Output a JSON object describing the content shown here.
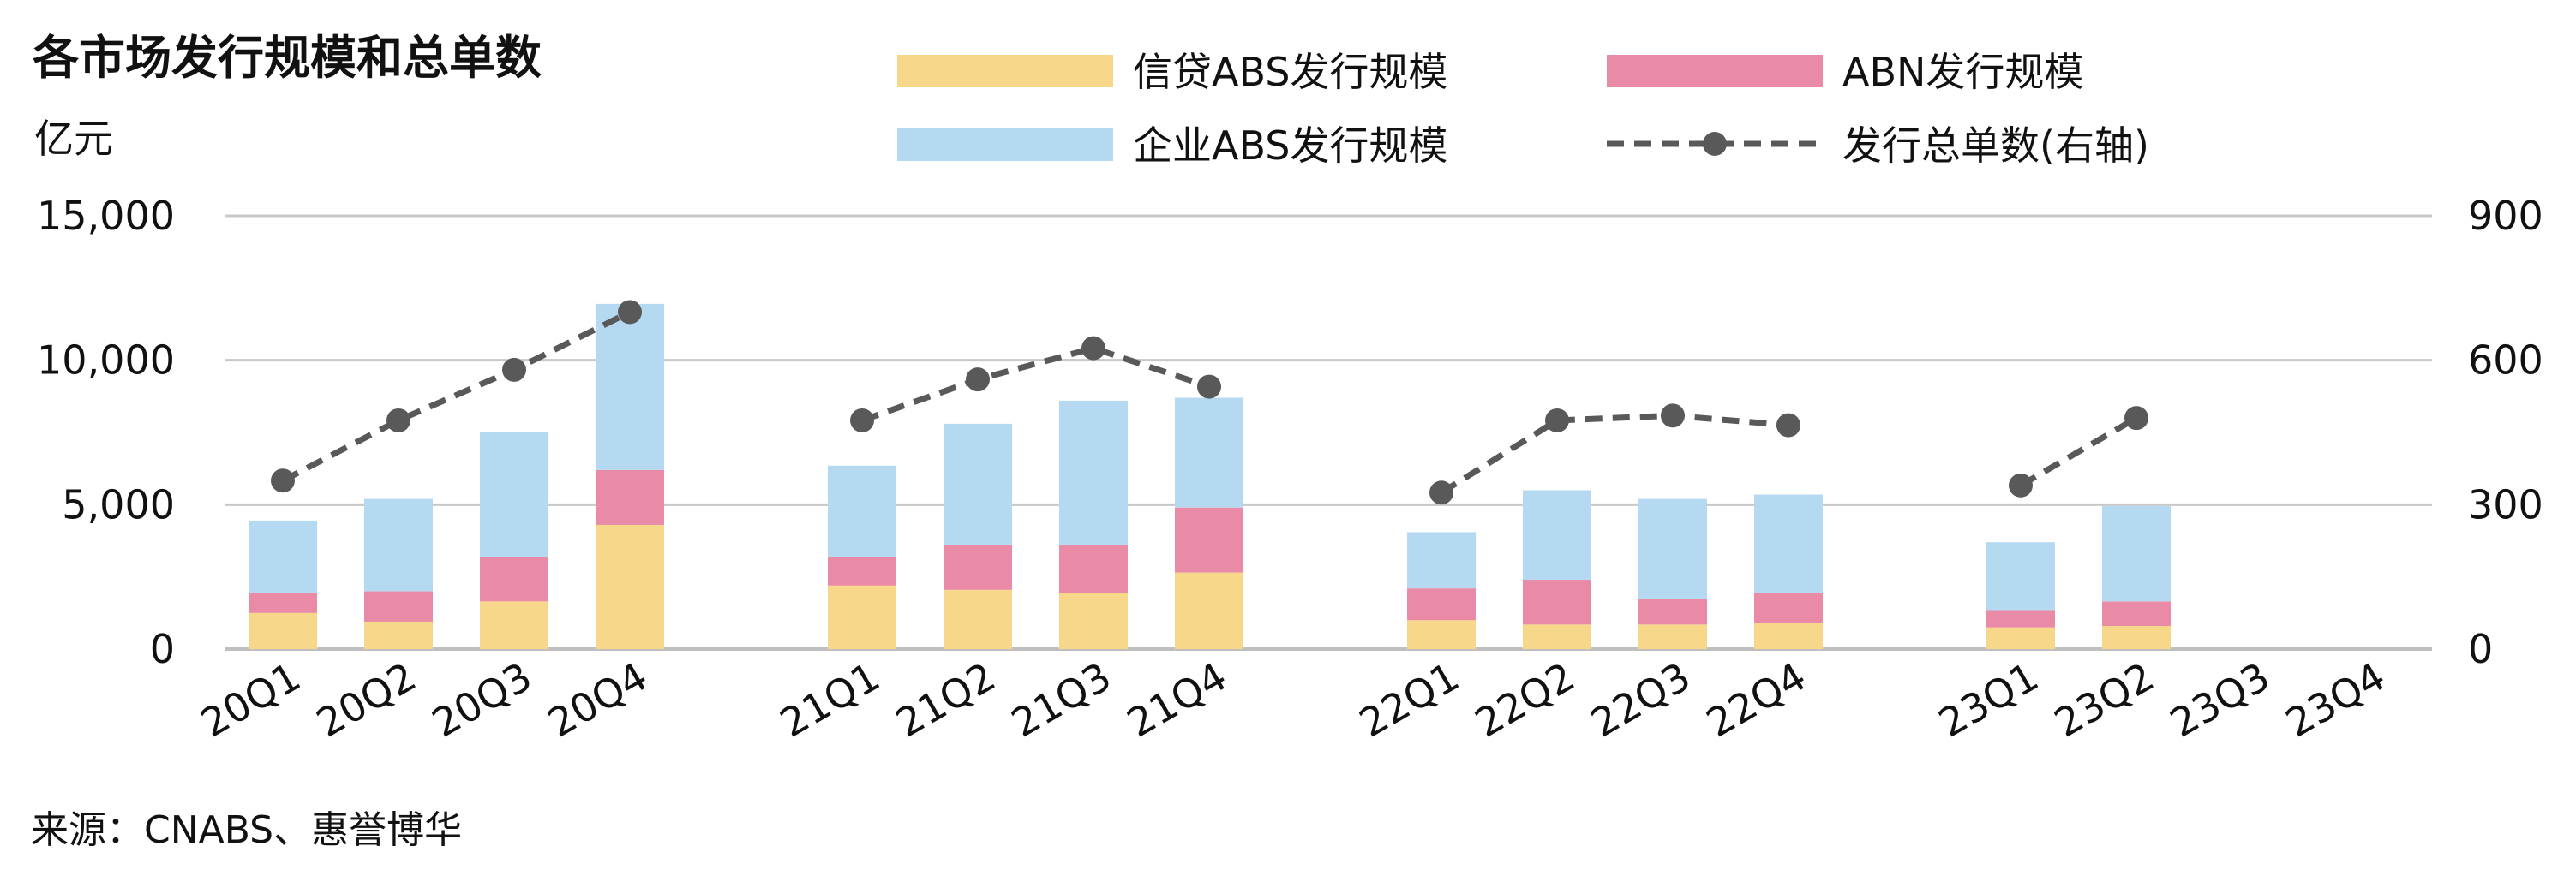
{
  "title": "各市场发行规模和总单数",
  "source": "来源：CNABS、惠誉博华",
  "colors": {
    "xindai": "#F7D88A",
    "abn": "#E98AA7",
    "qiye": "#B6D9F2",
    "line": "#595959",
    "grid": "#C8C8C8"
  },
  "chart_data": {
    "type": "bar",
    "stacked": true,
    "categories": [
      "20Q1",
      "20Q2",
      "20Q3",
      "20Q4",
      "21Q1",
      "21Q2",
      "21Q3",
      "21Q4",
      "22Q1",
      "22Q2",
      "22Q3",
      "22Q4",
      "23Q1",
      "23Q2",
      "23Q3",
      "23Q4"
    ],
    "series": [
      {
        "name": "信贷ABS发行规模",
        "values": [
          1250,
          950,
          1650,
          4300,
          2200,
          2050,
          1950,
          2650,
          1000,
          850,
          850,
          900,
          750,
          800,
          null,
          null
        ]
      },
      {
        "name": "ABN发行规模",
        "values": [
          700,
          1050,
          1550,
          1900,
          1000,
          1550,
          1650,
          2250,
          1100,
          1550,
          900,
          1050,
          600,
          850,
          null,
          null
        ]
      },
      {
        "name": "企业ABS发行规模",
        "values": [
          2500,
          3200,
          4300,
          5750,
          3150,
          4200,
          5000,
          3800,
          1950,
          3100,
          3450,
          3400,
          2350,
          3300,
          null,
          null
        ]
      }
    ],
    "line": {
      "name": "发行总单数(右轴)",
      "values": [
        350,
        475,
        580,
        700,
        475,
        560,
        625,
        545,
        325,
        475,
        485,
        465,
        340,
        480,
        null,
        null
      ]
    },
    "left_axis": {
      "unit": "亿元",
      "range": [
        0,
        15000
      ],
      "ticks": [
        "0",
        "5,000",
        "10,000",
        "15,000"
      ]
    },
    "right_axis": {
      "range": [
        0,
        900
      ],
      "ticks": [
        "0",
        "300",
        "600",
        "900"
      ]
    },
    "legend": [
      "信贷ABS发行规模",
      "ABN发行规模",
      "企业ABS发行规模",
      "发行总单数(右轴)"
    ],
    "legend_position": "top",
    "grid": true
  }
}
